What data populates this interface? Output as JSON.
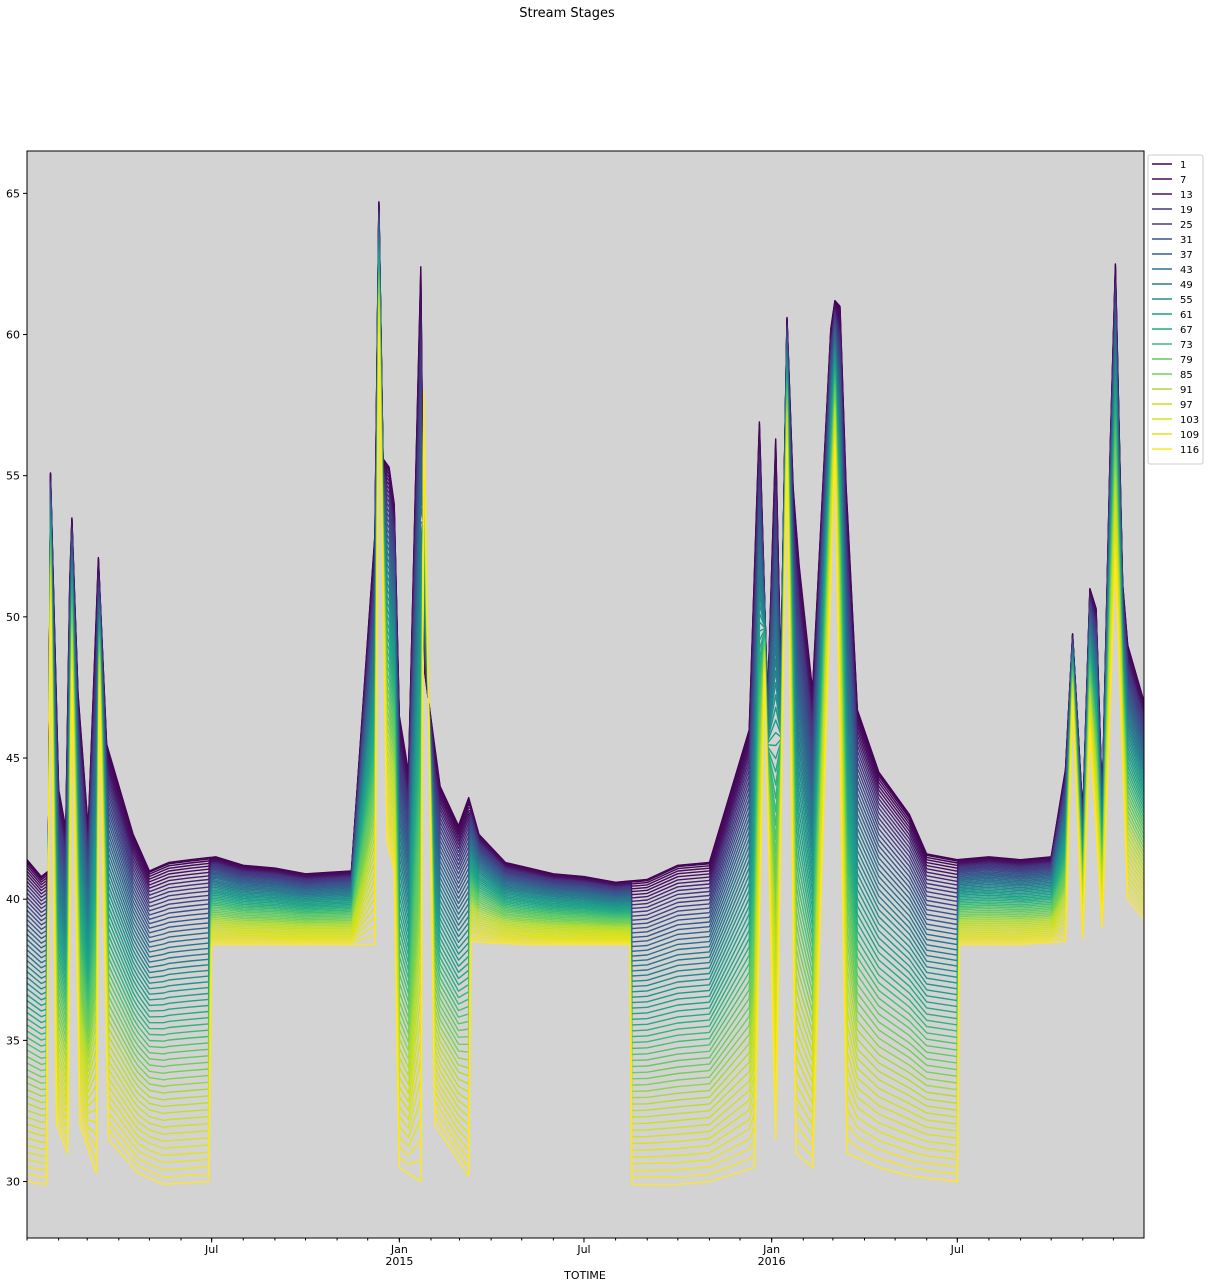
{
  "chart_data": {
    "type": "line",
    "title": "Stream Stages",
    "xlabel": "TOTIME",
    "ylabel": "",
    "ylim": [
      28,
      66.5
    ],
    "xlim": [
      "2014-01-01",
      "2016-12-31"
    ],
    "yticks": [
      30,
      35,
      40,
      45,
      50,
      55,
      60,
      65
    ],
    "x_major_ticks": [
      {
        "date": "2014-07-01",
        "label": "Jul",
        "sublabel": ""
      },
      {
        "date": "2015-01-01",
        "label": "Jan",
        "sublabel": "2015"
      },
      {
        "date": "2015-07-01",
        "label": "Jul",
        "sublabel": ""
      },
      {
        "date": "2016-01-01",
        "label": "Jan",
        "sublabel": "2016"
      },
      {
        "date": "2016-07-01",
        "label": "Jul",
        "sublabel": ""
      }
    ],
    "background": "#d3d3d3",
    "grid": false,
    "legend_position": "outside-upper-right",
    "colormap": "viridis",
    "legend": [
      "1",
      "7",
      "13",
      "19",
      "25",
      "31",
      "37",
      "43",
      "49",
      "55",
      "61",
      "67",
      "73",
      "79",
      "85",
      "91",
      "97",
      "103",
      "109",
      "116"
    ],
    "legend_colors": [
      "#440154",
      "#46085c",
      "#471365",
      "#46327e",
      "#433e85",
      "#3b528b",
      "#355f8d",
      "#2c728e",
      "#287c8e",
      "#21918c",
      "#1f9e89",
      "#25ab82",
      "#3bbb75",
      "#5ec962",
      "#75d054",
      "#addc30",
      "#c8e020",
      "#d8e219",
      "#e5e419",
      "#fde725"
    ],
    "envelope_series": [
      {
        "name": "1",
        "points": [
          [
            "2014-01-01",
            41.4
          ],
          [
            "2014-01-15",
            40.8
          ],
          [
            "2014-01-22",
            41.0
          ],
          [
            "2014-01-24",
            55.1
          ],
          [
            "2014-02-01",
            43.9
          ],
          [
            "2014-02-08",
            42.5
          ],
          [
            "2014-02-12",
            51.3
          ],
          [
            "2014-02-14",
            53.5
          ],
          [
            "2014-02-20",
            47.3
          ],
          [
            "2014-03-02",
            42.5
          ],
          [
            "2014-03-12",
            52.1
          ],
          [
            "2014-03-20",
            45.5
          ],
          [
            "2014-04-15",
            42.3
          ],
          [
            "2014-05-01",
            41.0
          ],
          [
            "2014-05-20",
            41.3
          ],
          [
            "2014-06-10",
            41.4
          ],
          [
            "2014-07-05",
            41.5
          ],
          [
            "2014-08-01",
            41.2
          ],
          [
            "2014-09-01",
            41.1
          ],
          [
            "2014-10-01",
            40.9
          ],
          [
            "2014-11-15",
            41.0
          ],
          [
            "2014-12-08",
            52.9
          ],
          [
            "2014-12-12",
            64.7
          ],
          [
            "2014-12-16",
            55.6
          ],
          [
            "2014-12-22",
            55.3
          ],
          [
            "2014-12-27",
            54.0
          ],
          [
            "2015-01-01",
            46.5
          ],
          [
            "2015-01-10",
            44.5
          ],
          [
            "2015-01-22",
            62.4
          ],
          [
            "2015-01-26",
            48.0
          ],
          [
            "2015-02-10",
            44.0
          ],
          [
            "2015-02-28",
            42.6
          ],
          [
            "2015-03-10",
            43.6
          ],
          [
            "2015-03-20",
            42.3
          ],
          [
            "2015-04-15",
            41.3
          ],
          [
            "2015-06-01",
            40.9
          ],
          [
            "2015-07-01",
            40.8
          ],
          [
            "2015-08-01",
            40.6
          ],
          [
            "2015-09-01",
            40.7
          ],
          [
            "2015-10-01",
            41.2
          ],
          [
            "2015-11-01",
            41.3
          ],
          [
            "2015-12-10",
            46.0
          ],
          [
            "2015-12-20",
            56.9
          ],
          [
            "2015-12-28",
            47.0
          ],
          [
            "2016-01-05",
            56.3
          ],
          [
            "2016-01-10",
            48.0
          ],
          [
            "2016-01-16",
            60.6
          ],
          [
            "2016-01-22",
            54.6
          ],
          [
            "2016-01-28",
            51.8
          ],
          [
            "2016-02-10",
            47.4
          ],
          [
            "2016-02-28",
            60.2
          ],
          [
            "2016-03-03",
            61.2
          ],
          [
            "2016-03-08",
            61.0
          ],
          [
            "2016-03-14",
            54.6
          ],
          [
            "2016-03-25",
            46.7
          ],
          [
            "2016-04-15",
            44.5
          ],
          [
            "2016-05-15",
            43.0
          ],
          [
            "2016-06-01",
            41.6
          ],
          [
            "2016-07-01",
            41.4
          ],
          [
            "2016-08-01",
            41.5
          ],
          [
            "2016-09-01",
            41.4
          ],
          [
            "2016-10-01",
            41.5
          ],
          [
            "2016-10-15",
            44.6
          ],
          [
            "2016-10-22",
            49.4
          ],
          [
            "2016-11-01",
            43.0
          ],
          [
            "2016-11-08",
            51.0
          ],
          [
            "2016-11-14",
            50.3
          ],
          [
            "2016-11-20",
            43.5
          ],
          [
            "2016-11-28",
            56.1
          ],
          [
            "2016-12-03",
            62.5
          ],
          [
            "2016-12-10",
            51.2
          ],
          [
            "2016-12-15",
            49.0
          ],
          [
            "2016-12-31",
            47.0
          ]
        ]
      },
      {
        "name": "116",
        "points": [
          [
            "2014-01-01",
            30.0
          ],
          [
            "2014-01-20",
            29.9
          ],
          [
            "2014-01-24",
            50.5
          ],
          [
            "2014-01-30",
            32.0
          ],
          [
            "2014-02-10",
            31.0
          ],
          [
            "2014-02-14",
            48.0
          ],
          [
            "2014-02-22",
            32.0
          ],
          [
            "2014-03-10",
            30.3
          ],
          [
            "2014-03-13",
            47.5
          ],
          [
            "2014-03-22",
            31.5
          ],
          [
            "2014-04-20",
            30.3
          ],
          [
            "2014-05-15",
            29.9
          ],
          [
            "2014-06-28",
            30.0
          ],
          [
            "2014-07-01",
            38.4
          ],
          [
            "2014-09-01",
            38.4
          ],
          [
            "2014-11-01",
            38.4
          ],
          [
            "2014-12-08",
            38.4
          ],
          [
            "2014-12-12",
            60.0
          ],
          [
            "2014-12-20",
            42.0
          ],
          [
            "2014-12-27",
            41.0
          ],
          [
            "2015-01-01",
            30.5
          ],
          [
            "2015-01-22",
            30.0
          ],
          [
            "2015-01-25",
            58.0
          ],
          [
            "2015-02-05",
            32.0
          ],
          [
            "2015-03-10",
            30.2
          ],
          [
            "2015-03-12",
            38.5
          ],
          [
            "2015-05-01",
            38.4
          ],
          [
            "2015-07-01",
            38.4
          ],
          [
            "2015-08-15",
            38.4
          ],
          [
            "2015-08-17",
            29.9
          ],
          [
            "2015-10-01",
            29.9
          ],
          [
            "2015-11-01",
            30.0
          ],
          [
            "2015-12-15",
            30.5
          ],
          [
            "2015-12-25",
            48.0
          ],
          [
            "2016-01-05",
            31.5
          ],
          [
            "2016-01-16",
            56.0
          ],
          [
            "2016-01-25",
            31.0
          ],
          [
            "2016-02-10",
            30.5
          ],
          [
            "2016-03-03",
            56.0
          ],
          [
            "2016-03-15",
            31.0
          ],
          [
            "2016-04-15",
            30.5
          ],
          [
            "2016-05-15",
            30.2
          ],
          [
            "2016-07-01",
            30.0
          ],
          [
            "2016-07-03",
            38.4
          ],
          [
            "2016-09-01",
            38.4
          ],
          [
            "2016-10-15",
            38.5
          ],
          [
            "2016-10-22",
            47.0
          ],
          [
            "2016-11-01",
            38.6
          ],
          [
            "2016-11-08",
            46.0
          ],
          [
            "2016-11-20",
            39.0
          ],
          [
            "2016-12-03",
            52.0
          ],
          [
            "2016-12-15",
            40.0
          ],
          [
            "2016-12-31",
            39.3
          ]
        ]
      }
    ]
  }
}
